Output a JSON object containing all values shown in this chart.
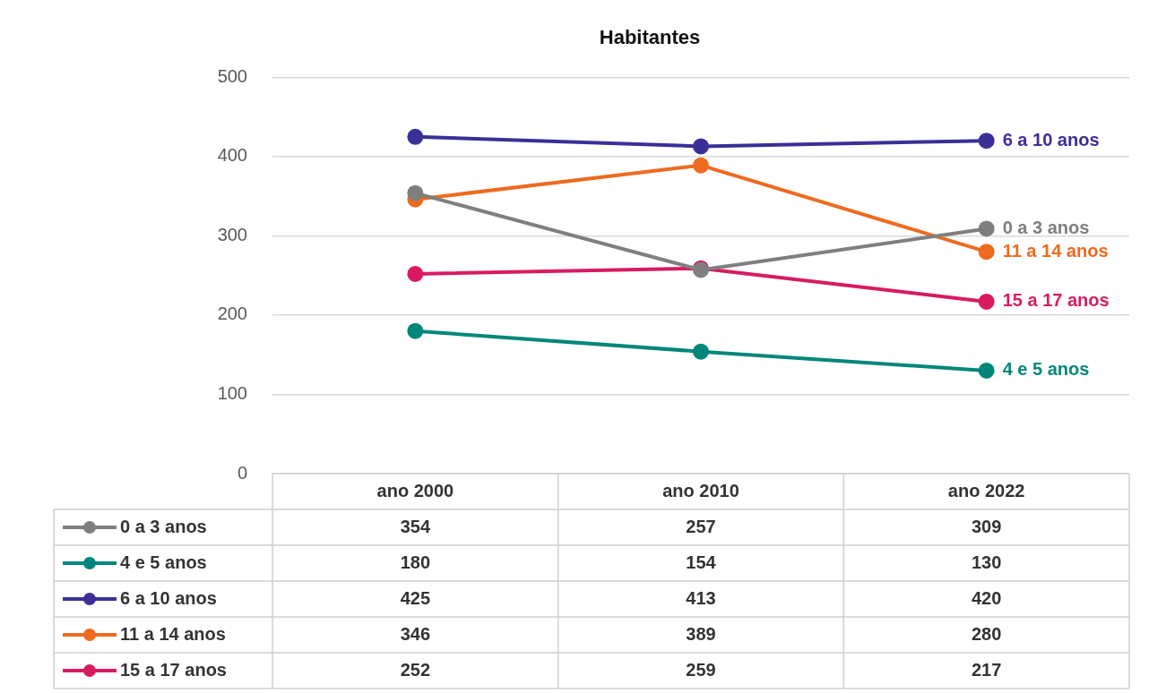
{
  "chart_data": {
    "type": "line",
    "title": "Habitantes",
    "categories": [
      "ano 2000",
      "ano 2010",
      "ano 2022"
    ],
    "series": [
      {
        "name": "0 a 3 anos",
        "color": "#7f7f7f",
        "values": [
          354,
          257,
          309
        ]
      },
      {
        "name": "4 e 5 anos",
        "color": "#00877a",
        "values": [
          180,
          154,
          130
        ]
      },
      {
        "name": "6 a 10 anos",
        "color": "#3b2f98",
        "values": [
          425,
          413,
          420
        ]
      },
      {
        "name": "11 a 14 anos",
        "color": "#ee6a1f",
        "values": [
          346,
          389,
          280
        ]
      },
      {
        "name": "15 a 17 anos",
        "color": "#d81b60",
        "values": [
          252,
          259,
          217
        ]
      }
    ],
    "ylim": [
      0,
      500
    ],
    "yticks": [
      0,
      100,
      200,
      300,
      400,
      500
    ],
    "grid": "y",
    "legend": "bottom",
    "marker": "circle",
    "line_style": "solid",
    "data_labels": true
  }
}
